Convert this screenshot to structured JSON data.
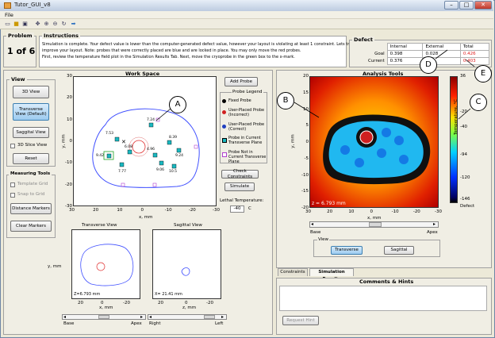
{
  "window": {
    "title": "Tutor_GUI_v8",
    "menu_file": "File"
  },
  "problem": {
    "header": "Problem",
    "value": "1 of 6"
  },
  "instructions": {
    "header": "Instructions",
    "line1": "Simulation is complete. Your defect value is lower than the computer-generated defect value, however your layout is violating at least 1 constraint. Lets try to",
    "line2": "improve your layout. Note: probes that were correctly placed are blue and are locked in place. You may only move the red probes.",
    "line3": "First, review the temperature field plot in the Simulation Results Tab. Next, move the cryoprobe in the green box to the x-mark."
  },
  "defect": {
    "header": "Defect",
    "columns": [
      "Internal",
      "External",
      "Total"
    ],
    "rows": [
      {
        "label": "Goal",
        "internal": "0.398",
        "external": "0.028",
        "total": "0.426"
      },
      {
        "label": "Current",
        "internal": "0.376",
        "external": "",
        "total": "0.403"
      }
    ],
    "total_color": "#e02020"
  },
  "view": {
    "header": "View",
    "btn_3d": "3D View",
    "btn_transverse": "Transverse View (Default)",
    "btn_sagittal": "Saggital View",
    "chk_3d_slice": "3D Slice View",
    "btn_reset": "Reset"
  },
  "measuring": {
    "header": "Measuring Tools",
    "chk_template": "Template Grid",
    "chk_snap": "Snap to Grid",
    "btn_distance": "Distance Markers",
    "btn_clear": "Clear Markers"
  },
  "workspace": {
    "header": "Work Space",
    "ylabel": "y, mm",
    "xlabel": "x, mm",
    "xticks": [
      "30",
      "20",
      "10",
      "0",
      "-10",
      "-20",
      "-30"
    ],
    "yticks": [
      "30",
      "20",
      "10",
      "0",
      "-10",
      "-20",
      "-30"
    ],
    "probe_labels": [
      "7.24",
      "7.53",
      "6.08",
      "4.96",
      "8.39",
      "9.42",
      "7.77",
      "9.06",
      "10.5",
      "9.24"
    ]
  },
  "controls": {
    "add_probe": "Add Probe",
    "check_constraints": "Check Constraints",
    "simulate": "Simulate",
    "lethal_label": "Lethal Temperature:",
    "lethal_value": "-40",
    "lethal_unit": "C"
  },
  "legend": {
    "header": "Probe Legend",
    "items": [
      "Fixed Probe",
      "User-Placed Probe (Incorrect)",
      "User-Placed Probe (Correct)",
      "Probe in Current Transverse Plane",
      "Probe Not in Current Transverse Plane"
    ]
  },
  "transverse": {
    "header": "Transverse View",
    "ylabel": "y, mm",
    "xlabel": "x, mm",
    "z_readout": "Z=6.793 mm",
    "xticks": [
      "20",
      "0",
      "-20"
    ],
    "slider_left": "Base",
    "slider_right": "Apex"
  },
  "sagittal": {
    "header": "Sagittal View",
    "xlabel": "z, mm",
    "x_readout": "X= 21.41 mm",
    "xticks": [
      "20",
      "0",
      "-20"
    ],
    "slider_left": "Right",
    "slider_right": "Left"
  },
  "analysis": {
    "header": "Analysis Tools",
    "ylabel": "y, mm",
    "xlabel": "x, mm",
    "xticks": [
      "30",
      "20",
      "10",
      "0",
      "-10",
      "-20",
      "-30"
    ],
    "yticks": [
      "20",
      "15",
      "10",
      "5",
      "0",
      "-5",
      "-10",
      "-15",
      "-20"
    ],
    "z_readout": "z = 6.793 mm",
    "colorbar_label": "Temperature, °C",
    "colorbar_ticks": [
      "36",
      "-20",
      "-40",
      "-94",
      "-120",
      "-146"
    ],
    "colorbar_defect": "Defect",
    "slider_left": "Base",
    "slider_right": "Apex",
    "view_header": "View",
    "btn_transverse": "Transverse",
    "btn_sagittal": "Sagittal"
  },
  "tabs": [
    "Constraints",
    "Simulation Results"
  ],
  "comments": {
    "header": "Comments & Hints",
    "request_hint": "Request Hint"
  },
  "callouts": [
    "A",
    "B",
    "C",
    "D",
    "E"
  ]
}
